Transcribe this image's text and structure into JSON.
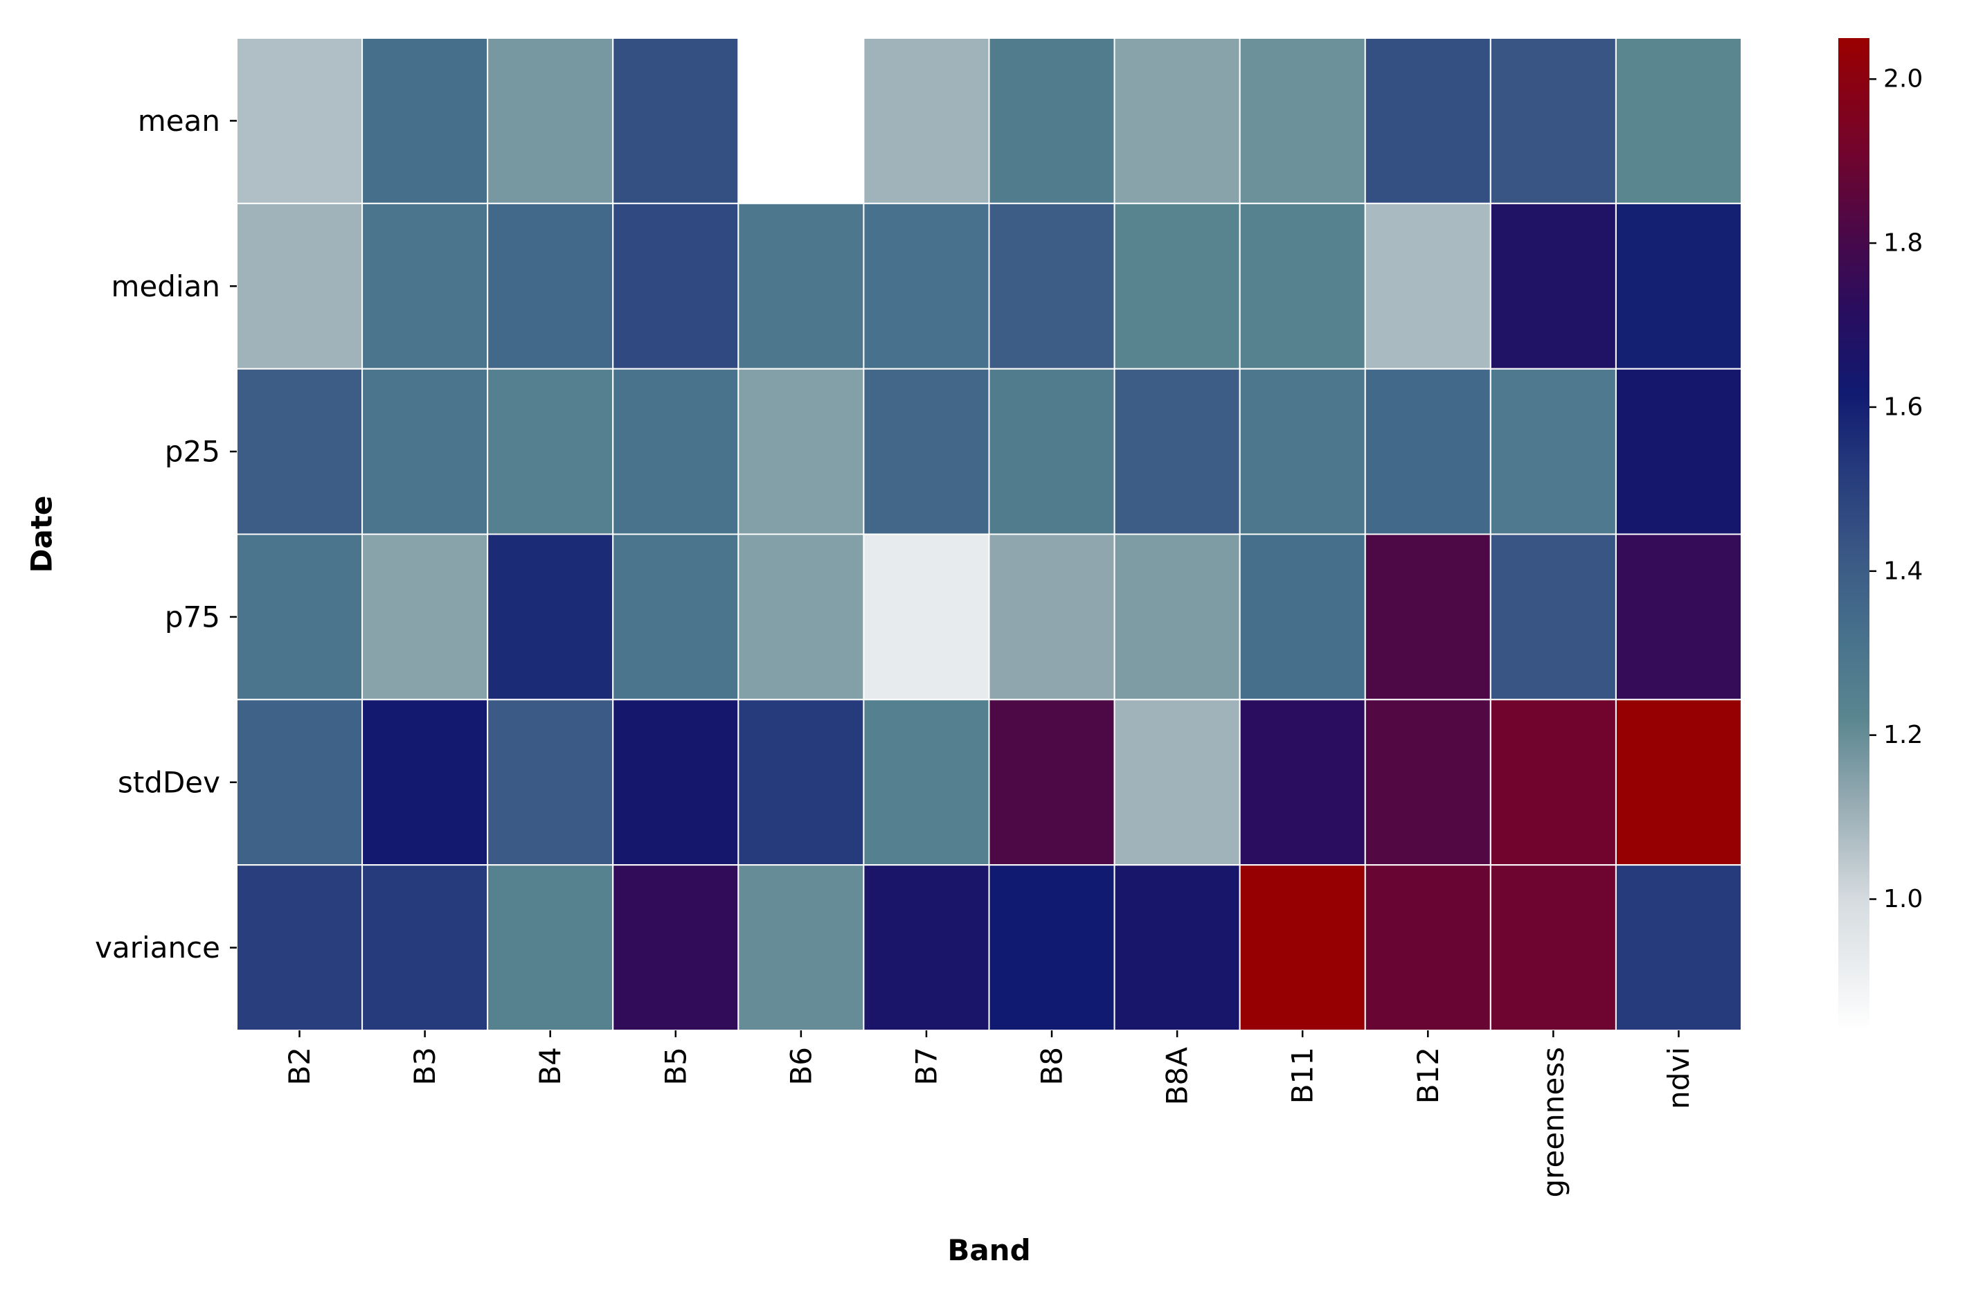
{
  "chart_data": {
    "type": "heatmap",
    "title": "",
    "xlabel": "Band",
    "ylabel": "Date",
    "x_categories": [
      "B2",
      "B3",
      "B4",
      "B5",
      "B6",
      "B7",
      "B8",
      "B8A",
      "B11",
      "B12",
      "greenness",
      "ndvi"
    ],
    "y_categories": [
      "mean",
      "median",
      "p25",
      "p75",
      "stdDev",
      "variance"
    ],
    "values": [
      [
        1.07,
        1.33,
        1.17,
        1.45,
        0.84,
        1.1,
        1.27,
        1.14,
        1.19,
        1.45,
        1.43,
        1.22
      ],
      [
        1.1,
        1.3,
        1.35,
        1.47,
        1.29,
        1.32,
        1.4,
        1.23,
        1.24,
        1.08,
        1.68,
        1.6
      ],
      [
        1.4,
        1.3,
        1.25,
        1.31,
        1.15,
        1.36,
        1.27,
        1.4,
        1.29,
        1.35,
        1.28,
        1.64
      ],
      [
        1.3,
        1.14,
        1.57,
        1.3,
        1.15,
        0.93,
        1.13,
        1.16,
        1.33,
        1.82,
        1.43,
        1.75
      ],
      [
        1.38,
        1.63,
        1.41,
        1.64,
        1.52,
        1.25,
        1.82,
        1.1,
        1.72,
        1.83,
        1.91,
        2.04
      ],
      [
        1.51,
        1.52,
        1.24,
        1.74,
        1.2,
        1.66,
        1.62,
        1.65,
        2.04,
        1.89,
        1.9,
        1.52
      ]
    ],
    "colorbar": {
      "vmin": 0.84,
      "vmax": 2.05,
      "ticks": [
        1.0,
        1.2,
        1.4,
        1.6,
        1.8,
        2.0
      ],
      "tick_labels": [
        "1.0",
        "1.2",
        "1.4",
        "1.6",
        "1.8",
        "2.0"
      ],
      "colormap": [
        {
          "v": 0.84,
          "color": "#ffffff"
        },
        {
          "v": 1.0,
          "color": "#d5dbdf"
        },
        {
          "v": 1.12,
          "color": "#95aab2"
        },
        {
          "v": 1.22,
          "color": "#5a8690"
        },
        {
          "v": 1.32,
          "color": "#47718c"
        },
        {
          "v": 1.42,
          "color": "#3a5885"
        },
        {
          "v": 1.52,
          "color": "#263b7c"
        },
        {
          "v": 1.62,
          "color": "#101a70"
        },
        {
          "v": 1.72,
          "color": "#2a0d5e"
        },
        {
          "v": 1.82,
          "color": "#4d0846"
        },
        {
          "v": 1.92,
          "color": "#75042a"
        },
        {
          "v": 2.05,
          "color": "#9a0000"
        }
      ]
    },
    "grid": false,
    "cell_border_color": "#ffffff"
  }
}
